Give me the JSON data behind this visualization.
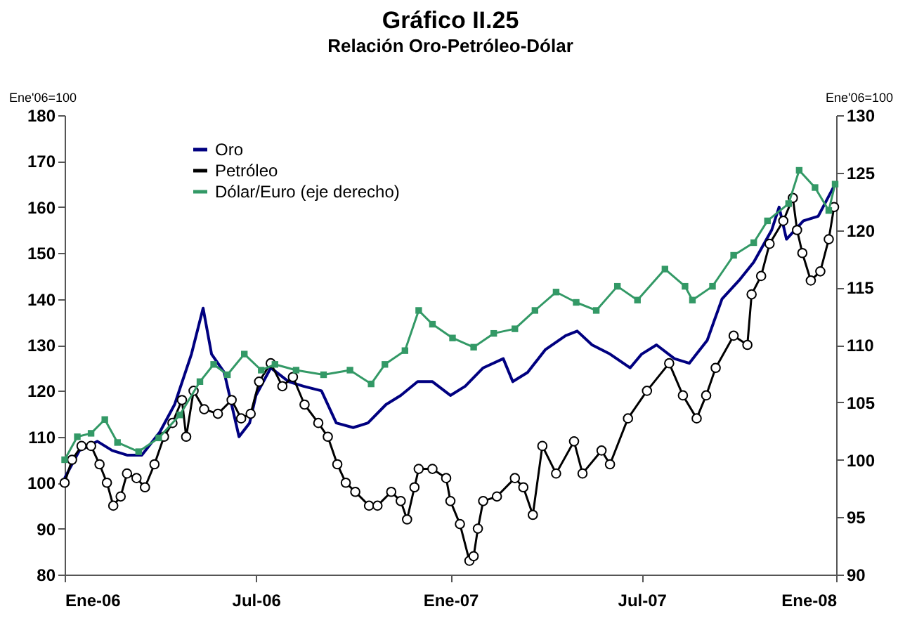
{
  "chart_data": {
    "type": "line",
    "title": "Gráfico II.25",
    "subtitle": "Relación Oro-Petróleo-Dólar",
    "ylabel": "Ene'06=100",
    "y2label": "Ene'06=100",
    "xlim": [
      "2006-01-01",
      "2008-01-01"
    ],
    "xticks": [
      {
        "value": "2006-01-01",
        "label": "Ene-06"
      },
      {
        "value": "2006-07-01",
        "label": "Jul-06"
      },
      {
        "value": "2007-01-01",
        "label": "Ene-07"
      },
      {
        "value": "2007-07-01",
        "label": "Jul-07"
      },
      {
        "value": "2008-01-01",
        "label": "Ene-08"
      }
    ],
    "ylim": [
      80,
      180
    ],
    "yticks": [
      80,
      90,
      100,
      110,
      120,
      130,
      140,
      150,
      160,
      170,
      180
    ],
    "y2lim": [
      90,
      130
    ],
    "y2ticks": [
      90,
      95,
      100,
      105,
      110,
      115,
      120,
      125,
      130
    ],
    "grid": false,
    "legend": "top left",
    "series": [
      {
        "name": "Oro",
        "color": "#000080",
        "marker": "none",
        "x": [
          "2006-01-01",
          "2006-01-15",
          "2006-02-01",
          "2006-02-15",
          "2006-03-01",
          "2006-03-15",
          "2006-04-01",
          "2006-04-15",
          "2006-05-01",
          "2006-05-12",
          "2006-05-20",
          "2006-06-01",
          "2006-06-15",
          "2006-06-25",
          "2006-07-01",
          "2006-07-15",
          "2006-08-01",
          "2006-08-15",
          "2006-09-01",
          "2006-09-15",
          "2006-10-01",
          "2006-10-15",
          "2006-11-01",
          "2006-11-15",
          "2006-12-01",
          "2006-12-15",
          "2007-01-01",
          "2007-01-15",
          "2007-02-01",
          "2007-02-20",
          "2007-03-01",
          "2007-03-15",
          "2007-04-01",
          "2007-04-20",
          "2007-05-01",
          "2007-05-15",
          "2007-06-01",
          "2007-06-20",
          "2007-07-01",
          "2007-07-15",
          "2007-08-01",
          "2007-08-15",
          "2007-09-01",
          "2007-09-15",
          "2007-10-01",
          "2007-10-15",
          "2007-11-01",
          "2007-11-08",
          "2007-11-15",
          "2007-12-01",
          "2007-12-15",
          "2007-12-31"
        ],
        "values": [
          101,
          107,
          109,
          107,
          106,
          106,
          111,
          117,
          128,
          138,
          128,
          124,
          110,
          113,
          119,
          125,
          122,
          121,
          120,
          113,
          112,
          113,
          117,
          119,
          122,
          122,
          119,
          121,
          125,
          127,
          122,
          124,
          129,
          132,
          133,
          130,
          128,
          125,
          128,
          130,
          127,
          126,
          131,
          140,
          144,
          148,
          155,
          160,
          153,
          157,
          158,
          165
        ]
      },
      {
        "name": "Petróleo",
        "color": "#000000",
        "marker": "circle",
        "x": [
          "2006-01-01",
          "2006-01-08",
          "2006-01-17",
          "2006-01-26",
          "2006-02-03",
          "2006-02-10",
          "2006-02-16",
          "2006-02-23",
          "2006-03-01",
          "2006-03-10",
          "2006-03-18",
          "2006-03-27",
          "2006-04-05",
          "2006-04-13",
          "2006-04-22",
          "2006-04-26",
          "2006-05-03",
          "2006-05-13",
          "2006-05-26",
          "2006-06-08",
          "2006-06-17",
          "2006-06-26",
          "2006-07-04",
          "2006-07-15",
          "2006-07-26",
          "2006-08-05",
          "2006-08-16",
          "2006-08-29",
          "2006-09-07",
          "2006-09-16",
          "2006-09-24",
          "2006-10-03",
          "2006-10-16",
          "2006-10-24",
          "2006-11-06",
          "2006-11-15",
          "2006-11-21",
          "2006-11-28",
          "2006-12-02",
          "2006-12-15",
          "2006-12-28",
          "2007-01-01",
          "2007-01-10",
          "2007-01-19",
          "2007-01-23",
          "2007-01-27",
          "2007-02-01",
          "2007-02-14",
          "2007-03-03",
          "2007-03-11",
          "2007-03-20",
          "2007-03-29",
          "2007-04-11",
          "2007-04-28",
          "2007-05-06",
          "2007-05-24",
          "2007-06-01",
          "2007-06-18",
          "2007-07-06",
          "2007-07-27",
          "2007-08-09",
          "2007-08-22",
          "2007-08-31",
          "2007-09-09",
          "2007-09-26",
          "2007-10-09",
          "2007-10-13",
          "2007-10-22",
          "2007-10-30",
          "2007-11-12",
          "2007-11-21",
          "2007-11-25",
          "2007-11-30",
          "2007-12-08",
          "2007-12-17",
          "2007-12-25",
          "2007-12-30"
        ],
        "values": [
          100,
          105,
          108,
          108,
          104,
          100,
          95,
          97,
          102,
          101,
          99,
          104,
          110,
          113,
          118,
          110,
          120,
          116,
          115,
          118,
          114,
          115,
          122,
          126,
          121,
          123,
          117,
          113,
          110,
          104,
          100,
          98,
          95,
          95,
          98,
          96,
          92,
          99,
          103,
          103,
          101,
          96,
          91,
          83,
          84,
          90,
          96,
          97,
          101,
          99,
          93,
          108,
          102,
          109,
          102,
          107,
          104,
          114,
          120,
          126,
          119,
          114,
          119,
          125,
          132,
          130,
          141,
          145,
          152,
          157,
          162,
          155,
          150,
          144,
          146,
          153,
          160
        ]
      },
      {
        "name": "Dólar/Euro (eje derecho)",
        "color": "#339966",
        "marker": "square",
        "axis": "y2",
        "x": [
          "2006-01-01",
          "2006-01-13",
          "2006-01-26",
          "2006-02-08",
          "2006-02-20",
          "2006-03-12",
          "2006-03-31",
          "2006-04-20",
          "2006-05-09",
          "2006-05-22",
          "2006-06-04",
          "2006-06-20",
          "2006-07-06",
          "2006-07-19",
          "2006-08-08",
          "2006-09-03",
          "2006-09-28",
          "2006-10-18",
          "2006-10-31",
          "2006-11-19",
          "2006-12-02",
          "2006-12-15",
          "2007-01-03",
          "2007-01-23",
          "2007-02-11",
          "2007-03-03",
          "2007-03-22",
          "2007-04-11",
          "2007-04-30",
          "2007-05-19",
          "2007-06-08",
          "2007-06-27",
          "2007-07-23",
          "2007-08-11",
          "2007-08-18",
          "2007-09-06",
          "2007-09-26",
          "2007-10-15",
          "2007-10-28",
          "2007-11-17",
          "2007-11-27",
          "2007-12-12",
          "2007-12-25",
          "2007-12-31"
        ],
        "values": [
          100,
          102,
          102.3,
          103.5,
          101.5,
          100.7,
          101.9,
          103.9,
          106.8,
          108.3,
          107.4,
          109.2,
          107.8,
          108.3,
          107.8,
          107.4,
          107.8,
          106.6,
          108.3,
          109.5,
          113,
          111.8,
          110.6,
          109.8,
          111,
          111.4,
          113,
          114.6,
          113.7,
          113,
          115.1,
          113.9,
          116.6,
          115.1,
          113.9,
          115.1,
          117.8,
          118.9,
          120.8,
          122.3,
          125.2,
          123.7,
          121.7,
          124
        ]
      }
    ]
  }
}
